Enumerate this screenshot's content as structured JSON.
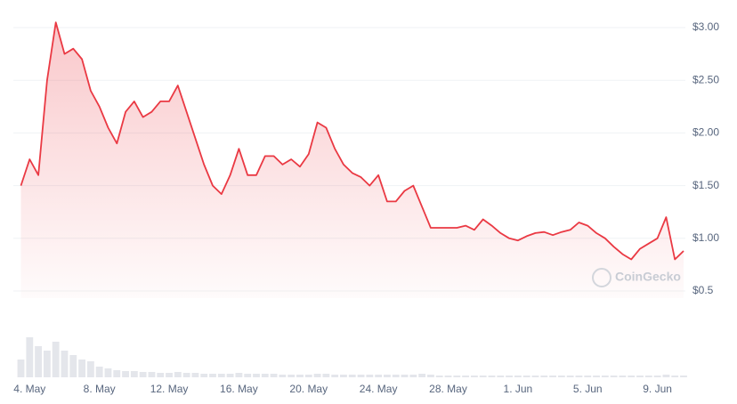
{
  "chart_data": [
    {
      "type": "line",
      "categories": [
        null,
        "4. May",
        null,
        null,
        null,
        null,
        null,
        null,
        null,
        "8. May",
        null,
        null,
        null,
        null,
        null,
        null,
        null,
        "12. May",
        null,
        null,
        null,
        null,
        null,
        null,
        null,
        "16. May",
        null,
        null,
        null,
        null,
        null,
        null,
        null,
        "20. May",
        null,
        null,
        null,
        null,
        null,
        null,
        null,
        "24. May",
        null,
        null,
        null,
        null,
        null,
        null,
        null,
        "28. May",
        null,
        null,
        null,
        null,
        null,
        null,
        null,
        "1. Jun",
        null,
        null,
        null,
        null,
        null,
        null,
        null,
        "5. Jun",
        null,
        null,
        null,
        null,
        null,
        null,
        null,
        "9. Jun",
        null,
        null,
        null
      ],
      "values": [
        1.5,
        1.75,
        1.6,
        2.5,
        3.05,
        2.75,
        2.8,
        2.7,
        2.4,
        2.25,
        2.05,
        1.9,
        2.2,
        2.3,
        2.15,
        2.2,
        2.3,
        2.3,
        2.45,
        2.2,
        1.95,
        1.7,
        1.5,
        1.42,
        1.6,
        1.85,
        1.6,
        1.6,
        1.78,
        1.78,
        1.7,
        1.75,
        1.68,
        1.8,
        2.1,
        2.05,
        1.85,
        1.7,
        1.62,
        1.58,
        1.5,
        1.6,
        1.35,
        1.35,
        1.45,
        1.5,
        1.3,
        1.1,
        1.1,
        1.1,
        1.1,
        1.12,
        1.08,
        1.18,
        1.12,
        1.05,
        1.0,
        0.98,
        1.02,
        1.05,
        1.06,
        1.03,
        1.06,
        1.08,
        1.15,
        1.12,
        1.05,
        1.0,
        0.92,
        0.85,
        0.8,
        0.9,
        0.95,
        1.0,
        1.2,
        0.8,
        0.88
      ],
      "color": "#ea3943",
      "ylim": [
        0.5,
        3.0
      ],
      "yticks": [
        {
          "value": 3.0,
          "label": "$3.00"
        },
        {
          "value": 2.5,
          "label": "$2.50"
        },
        {
          "value": 2.0,
          "label": "$2.00"
        },
        {
          "value": 1.5,
          "label": "$1.50"
        },
        {
          "value": 1.0,
          "label": "$1.00"
        },
        {
          "value": 0.5,
          "label": "$0.5"
        }
      ],
      "grid": true,
      "watermark": "CoinGecko"
    },
    {
      "type": "bar",
      "values": [
        20,
        45,
        35,
        30,
        40,
        30,
        25,
        20,
        18,
        12,
        10,
        8,
        7,
        7,
        6,
        6,
        5,
        5,
        6,
        5,
        5,
        4,
        4,
        4,
        4,
        5,
        4,
        4,
        4,
        4,
        3,
        3,
        3,
        3,
        4,
        4,
        3,
        3,
        3,
        3,
        3,
        3,
        3,
        3,
        3,
        3,
        4,
        3,
        2,
        2,
        2,
        2,
        2,
        2,
        2,
        2,
        2,
        2,
        2,
        2,
        2,
        2,
        2,
        2,
        2,
        2,
        2,
        2,
        2,
        2,
        2,
        2,
        2,
        2,
        3,
        2,
        2
      ],
      "color": "#e4e6eb"
    }
  ]
}
